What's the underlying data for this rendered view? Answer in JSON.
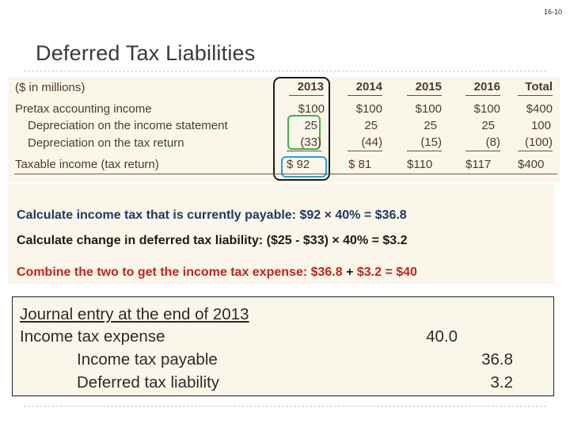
{
  "page_number": "16-10",
  "title": "Deferred Tax Liabilities",
  "table": {
    "header": {
      "label": "($ in millions)",
      "columns": [
        "2013",
        "2014",
        "2015",
        "2016",
        "Total"
      ]
    },
    "rows": [
      {
        "label": "Pretax accounting income",
        "values": [
          "$100",
          "$100",
          "$100",
          "$100",
          "$400"
        ]
      },
      {
        "label": "Depreciation on the income statement",
        "values": [
          "25",
          "25",
          "25",
          "25",
          "100"
        ]
      },
      {
        "label": "Depreciation on the tax return",
        "values": [
          "(33)",
          "(44)",
          "(15)",
          "(8)",
          "(100)"
        ]
      },
      {
        "label": "Taxable income (tax return)",
        "values": [
          "$ 92",
          "$ 81",
          "$110",
          "$117",
          "$400"
        ]
      }
    ],
    "highlight_colors": {
      "column_2013": "#1d1d1d",
      "depreciation_2013": "#42b14a",
      "taxable_2013": "#2e9fdc"
    }
  },
  "calculations": {
    "line1": "Calculate income tax that is currently payable:  $92 × 40% = $36.8",
    "line2": "Calculate change in deferred tax liability: ($25 - $33) × 40% = $3.2",
    "line3_red": "Combine the two to get the income tax expense: $36.8 ",
    "line3_plus": "+",
    "line3_end": " $3.2 = $40"
  },
  "journal_entry": {
    "title": "Journal entry at the end of 2013",
    "lines": [
      {
        "account": "Income tax expense",
        "debit": "40.0",
        "credit": ""
      },
      {
        "account": "Income tax payable",
        "debit": "",
        "credit": "36.8"
      },
      {
        "account": "Deferred tax liability",
        "debit": "",
        "credit": "3.2"
      }
    ]
  }
}
